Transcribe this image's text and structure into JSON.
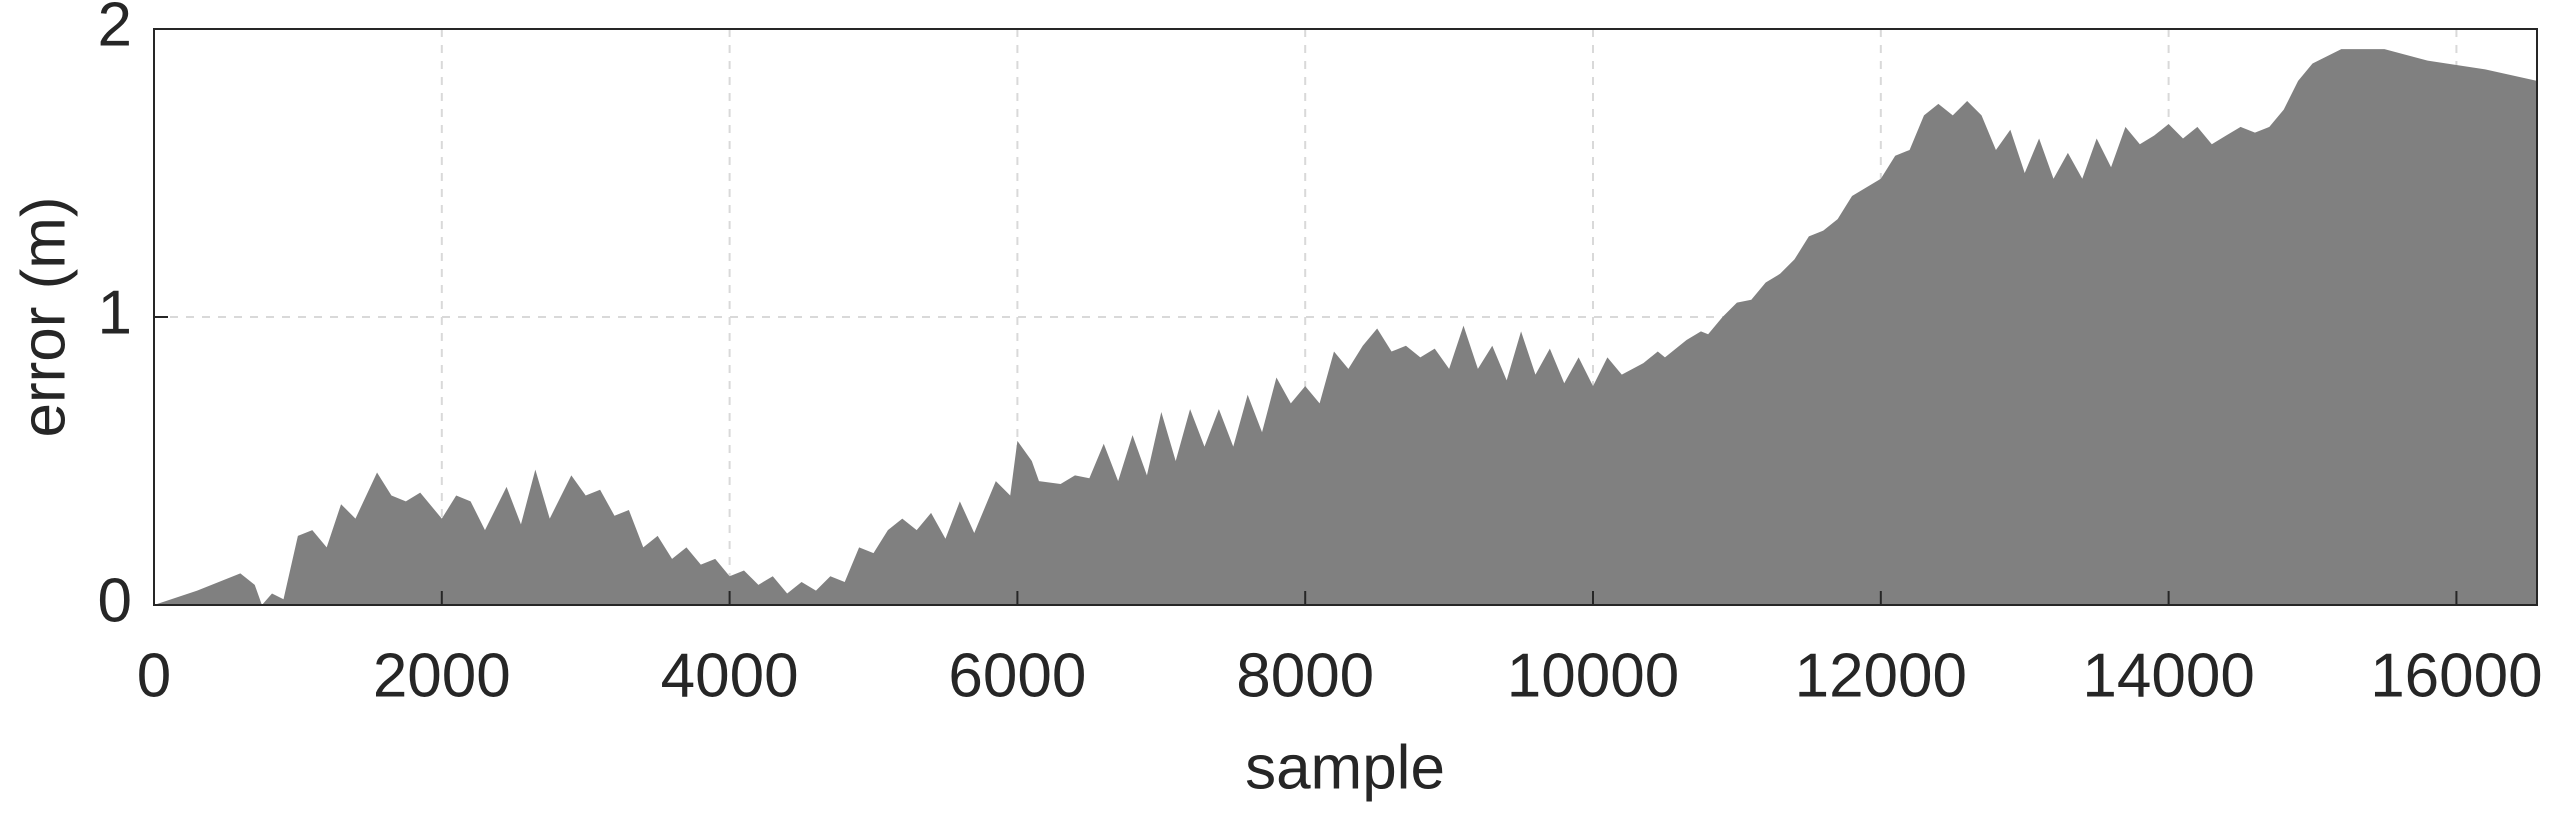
{
  "chart_data": {
    "type": "area",
    "x_label": "sample",
    "y_label": "error (m)",
    "x": [
      0,
      300,
      600,
      700,
      750,
      820,
      900,
      1000,
      1100,
      1200,
      1300,
      1400,
      1550,
      1650,
      1750,
      1850,
      2000,
      2100,
      2200,
      2300,
      2450,
      2550,
      2650,
      2750,
      2900,
      3000,
      3100,
      3200,
      3300,
      3400,
      3500,
      3600,
      3700,
      3800,
      3900,
      4000,
      4100,
      4200,
      4300,
      4400,
      4500,
      4600,
      4700,
      4800,
      4900,
      5000,
      5100,
      5200,
      5300,
      5400,
      5500,
      5600,
      5700,
      5850,
      5950,
      6000,
      6100,
      6150,
      6300,
      6400,
      6500,
      6600,
      6700,
      6800,
      6900,
      7000,
      7100,
      7200,
      7300,
      7400,
      7500,
      7600,
      7700,
      7800,
      7900,
      8000,
      8100,
      8200,
      8300,
      8400,
      8500,
      8600,
      8700,
      8800,
      8900,
      9000,
      9100,
      9200,
      9300,
      9400,
      9500,
      9600,
      9700,
      9800,
      9900,
      10000,
      10100,
      10200,
      10350,
      10450,
      10500,
      10650,
      10750,
      10800,
      10900,
      11000,
      11100,
      11200,
      11300,
      11400,
      11500,
      11600,
      11700,
      11800,
      11900,
      12000,
      12100,
      12200,
      12300,
      12400,
      12500,
      12600,
      12700,
      12800,
      12900,
      13000,
      13100,
      13200,
      13300,
      13400,
      13500,
      13600,
      13700,
      13800,
      13900,
      14000,
      14100,
      14200,
      14300,
      14400,
      14500,
      14600,
      14700,
      14800,
      14900,
      15000,
      15200,
      15500,
      15800,
      16200,
      16560
    ],
    "series": [
      {
        "color": "#808080",
        "values": [
          0,
          0.05,
          0.11,
          0.07,
          0.0,
          0.04,
          0.02,
          0.24,
          0.26,
          0.2,
          0.35,
          0.3,
          0.46,
          0.38,
          0.36,
          0.39,
          0.3,
          0.38,
          0.36,
          0.26,
          0.41,
          0.28,
          0.47,
          0.3,
          0.45,
          0.38,
          0.4,
          0.31,
          0.33,
          0.2,
          0.24,
          0.16,
          0.2,
          0.14,
          0.16,
          0.1,
          0.12,
          0.07,
          0.1,
          0.04,
          0.08,
          0.05,
          0.1,
          0.08,
          0.2,
          0.18,
          0.26,
          0.3,
          0.26,
          0.32,
          0.23,
          0.36,
          0.25,
          0.43,
          0.38,
          0.57,
          0.5,
          0.43,
          0.42,
          0.45,
          0.44,
          0.56,
          0.43,
          0.59,
          0.45,
          0.67,
          0.5,
          0.68,
          0.55,
          0.68,
          0.55,
          0.73,
          0.6,
          0.79,
          0.7,
          0.76,
          0.7,
          0.88,
          0.82,
          0.9,
          0.96,
          0.88,
          0.9,
          0.86,
          0.89,
          0.82,
          0.97,
          0.82,
          0.9,
          0.78,
          0.95,
          0.8,
          0.89,
          0.77,
          0.86,
          0.76,
          0.86,
          0.8,
          0.84,
          0.88,
          0.86,
          0.92,
          0.95,
          0.94,
          1.0,
          1.05,
          1.06,
          1.12,
          1.15,
          1.2,
          1.28,
          1.3,
          1.34,
          1.42,
          1.45,
          1.48,
          1.56,
          1.58,
          1.7,
          1.74,
          1.7,
          1.75,
          1.7,
          1.58,
          1.65,
          1.5,
          1.62,
          1.48,
          1.57,
          1.48,
          1.62,
          1.52,
          1.66,
          1.6,
          1.63,
          1.67,
          1.62,
          1.66,
          1.6,
          1.63,
          1.66,
          1.64,
          1.66,
          1.72,
          1.82,
          1.88,
          1.93,
          1.93,
          1.89,
          1.86,
          1.82
        ]
      }
    ],
    "xlim": [
      0,
      16560
    ],
    "ylim": [
      0,
      2
    ],
    "xticks": [
      0,
      2000,
      4000,
      6000,
      8000,
      10000,
      12000,
      14000,
      16000
    ],
    "yticks": [
      0,
      1,
      2
    ],
    "grid": true
  }
}
